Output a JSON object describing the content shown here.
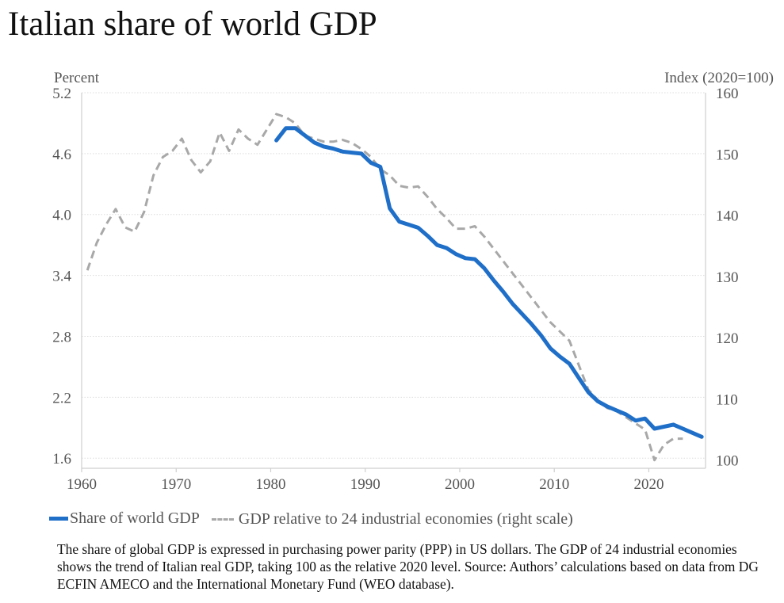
{
  "title": "Italian share of world GDP",
  "note": "The share of global GDP is expressed in purchasing power parity (PPP) in US dollars. The GDP of 24 industrial economies shows the trend of Italian real GDP, taking 100 as the relative 2020 level. Source: Authors’ calculations based on data from DG ECFIN AMECO and the International Monetary Fund (WEO database).",
  "chart_data": {
    "type": "line",
    "title": "Italian share of world GDP",
    "left_axis": {
      "unit_label": "Percent",
      "range": [
        1.5,
        5.2
      ],
      "ticks": [
        1.6,
        2.2,
        2.8,
        3.4,
        4.0,
        4.6,
        5.2
      ],
      "tick_labels": [
        "1.6",
        "2.2",
        "2.8",
        "3.4",
        "4.0",
        "4.6",
        "5.2"
      ]
    },
    "right_axis": {
      "unit_label": "Index (2020=100)",
      "range": [
        98.6667,
        160
      ],
      "ticks": [
        100,
        110,
        120,
        130,
        140,
        150,
        160
      ],
      "tick_labels": [
        "100",
        "110",
        "120",
        "130",
        "140",
        "150",
        "160"
      ]
    },
    "x_axis": {
      "range": [
        1960,
        2026
      ],
      "ticks": [
        1960,
        1970,
        1980,
        1990,
        2000,
        2010,
        2020
      ],
      "tick_labels": [
        "1960",
        "1970",
        "1980",
        "1990",
        "2000",
        "2010",
        "2020"
      ]
    },
    "grid": true,
    "legend_position": "bottom",
    "series": [
      {
        "name": "Share of world GDP",
        "axis": "left",
        "color": "#1f6fc8",
        "style": "solid",
        "x": [
          1980.6,
          1981.6,
          1982.6,
          1983.6,
          1984.6,
          1985.6,
          1986.6,
          1987.6,
          1988.6,
          1989.6,
          1990.6,
          1991.6,
          1992.6,
          1993.6,
          1994.6,
          1995.6,
          1996.6,
          1997.6,
          1998.6,
          1999.6,
          2000.6,
          2001.6,
          2002.6,
          2003.6,
          2004.6,
          2005.6,
          2006.6,
          2007.6,
          2008.6,
          2009.6,
          2010.6,
          2011.6,
          2012.6,
          2013.6,
          2014.6,
          2015.6,
          2016.6,
          2017.6,
          2018.6,
          2019.6,
          2020.6,
          2021.6,
          2022.6,
          2023.6,
          2024.6,
          2025.6
        ],
        "values": [
          4.73,
          4.85,
          4.85,
          4.78,
          4.71,
          4.67,
          4.65,
          4.62,
          4.61,
          4.6,
          4.51,
          4.47,
          4.06,
          3.93,
          3.9,
          3.87,
          3.79,
          3.7,
          3.67,
          3.61,
          3.57,
          3.56,
          3.47,
          3.35,
          3.24,
          3.12,
          3.02,
          2.92,
          2.81,
          2.68,
          2.6,
          2.53,
          2.39,
          2.25,
          2.16,
          2.11,
          2.07,
          2.03,
          1.97,
          1.99,
          1.89,
          1.91,
          1.93,
          1.89,
          1.85,
          1.81
        ]
      },
      {
        "name": "GDP relative to 24 industrial economies (right scale)",
        "axis": "right",
        "color": "#a8a8a8",
        "style": "dashed",
        "x": [
          1960.6,
          1961.6,
          1962.6,
          1963.6,
          1964.6,
          1965.6,
          1966.6,
          1967.6,
          1968.6,
          1969.6,
          1970.6,
          1971.6,
          1972.6,
          1973.6,
          1974.6,
          1975.6,
          1976.6,
          1977.6,
          1978.6,
          1979.6,
          1980.6,
          1981.6,
          1982.6,
          1983.6,
          1984.6,
          1985.6,
          1986.6,
          1987.6,
          1988.6,
          1989.6,
          1990.6,
          1991.6,
          1992.6,
          1993.6,
          1994.6,
          1995.6,
          1996.6,
          1997.6,
          1998.6,
          1999.6,
          2000.6,
          2001.6,
          2002.6,
          2003.6,
          2004.6,
          2005.6,
          2006.6,
          2007.6,
          2008.6,
          2009.6,
          2010.6,
          2011.6,
          2012.6,
          2013.6,
          2014.6,
          2015.6,
          2016.6,
          2017.6,
          2018.6,
          2019.6,
          2020.6,
          2021.6,
          2022.6,
          2023.6
        ],
        "values": [
          131.0,
          135.5,
          138.5,
          141.0,
          138.0,
          137.3,
          140.5,
          146.5,
          149.5,
          150.5,
          152.5,
          149.0,
          147.0,
          148.8,
          153.5,
          150.5,
          154.0,
          152.5,
          151.5,
          154.0,
          156.5,
          156.0,
          155.0,
          153.0,
          152.5,
          152.0,
          152.0,
          152.3,
          151.8,
          150.8,
          149.5,
          147.5,
          146.5,
          144.8,
          144.5,
          144.7,
          143.0,
          141.0,
          139.5,
          137.8,
          137.8,
          138.2,
          136.5,
          134.5,
          132.5,
          130.5,
          128.5,
          126.5,
          124.5,
          122.5,
          121.0,
          119.5,
          115.5,
          111.5,
          109.8,
          108.5,
          108.0,
          107.0,
          106.0,
          105.0,
          100.0,
          102.5,
          103.5,
          103.5
        ]
      }
    ]
  }
}
